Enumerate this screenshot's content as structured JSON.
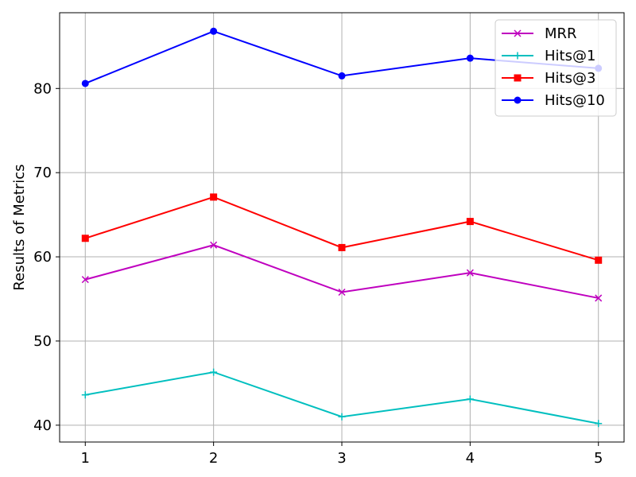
{
  "chart_data": {
    "type": "line",
    "title": "",
    "xlabel": "",
    "ylabel": "Results of Metrics",
    "x": [
      1,
      2,
      3,
      4,
      5
    ],
    "xticks": [
      "1",
      "2",
      "3",
      "4",
      "5"
    ],
    "xlim": [
      0.8,
      5.2
    ],
    "yticks": [
      "40",
      "50",
      "60",
      "70",
      "80"
    ],
    "ylim": [
      38,
      89
    ],
    "grid": true,
    "legend_position": "top-right",
    "series": [
      {
        "name": "MRR",
        "color": "#bf00bf",
        "marker": "x",
        "values": [
          57.3,
          61.4,
          55.8,
          58.1,
          55.1
        ]
      },
      {
        "name": "Hits@1",
        "color": "#00bfbf",
        "marker": "+",
        "values": [
          43.6,
          46.3,
          41.0,
          43.1,
          40.2
        ]
      },
      {
        "name": "Hits@3",
        "color": "#ff0000",
        "marker": "square",
        "values": [
          62.2,
          67.1,
          61.1,
          64.2,
          59.6
        ]
      },
      {
        "name": "Hits@10",
        "color": "#0000ff",
        "marker": "circle",
        "values": [
          80.6,
          86.8,
          81.5,
          83.6,
          82.4
        ]
      }
    ]
  }
}
